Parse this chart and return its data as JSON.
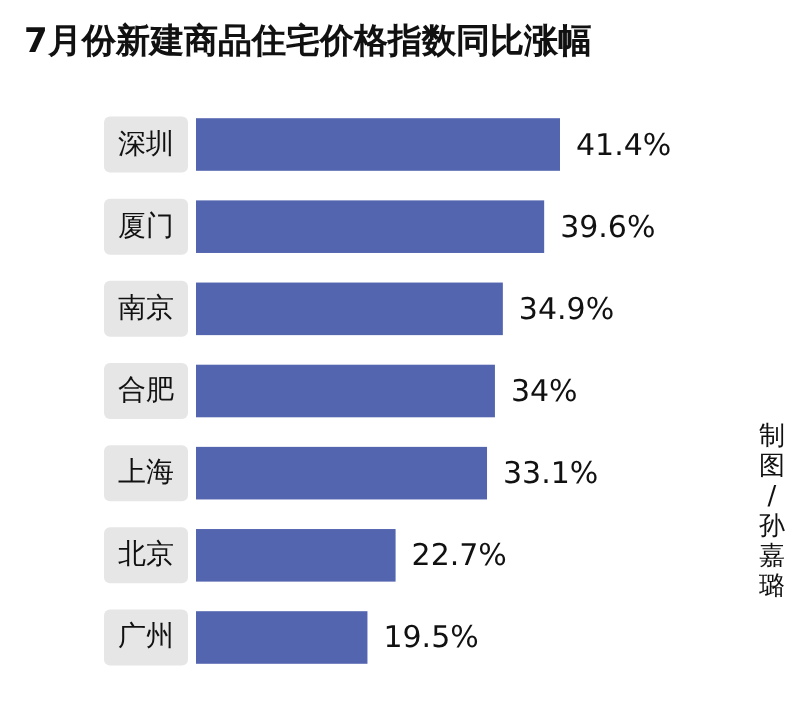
{
  "chart_data": {
    "type": "bar",
    "orientation": "horizontal",
    "title": "7月份新建商品住宅价格指数同比涨幅",
    "categories": [
      "深圳",
      "厦门",
      "南京",
      "合肥",
      "上海",
      "北京",
      "广州"
    ],
    "values": [
      41.4,
      39.6,
      34.9,
      34,
      33.1,
      22.7,
      19.5
    ],
    "value_labels": [
      "41.4%",
      "39.6%",
      "34.9%",
      "34%",
      "33.1%",
      "22.7%",
      "19.5%"
    ],
    "color": "#5465b0",
    "xlim": [
      0,
      41.4
    ],
    "tick_labels": "y",
    "annotations": [
      "制图/孙嘉璐"
    ]
  }
}
